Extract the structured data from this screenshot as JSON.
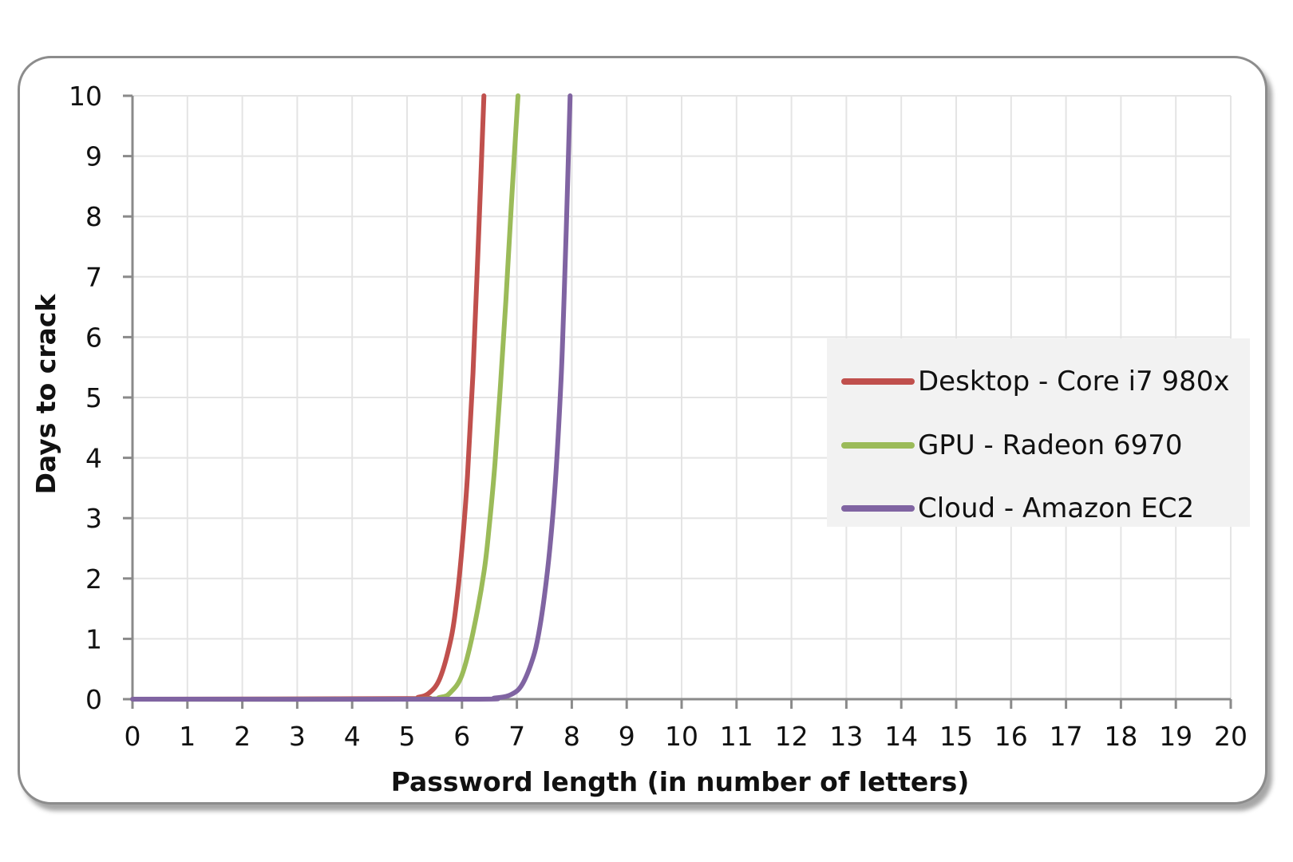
{
  "chart_data": {
    "type": "line",
    "title": "",
    "xlabel": "Password length (in number of letters)",
    "ylabel": "Days to crack",
    "xlim": [
      0,
      20
    ],
    "ylim": [
      0,
      10
    ],
    "x_ticks": [
      0,
      1,
      2,
      3,
      4,
      5,
      6,
      7,
      8,
      9,
      10,
      11,
      12,
      13,
      14,
      15,
      16,
      17,
      18,
      19,
      20
    ],
    "y_ticks": [
      0,
      1,
      2,
      3,
      4,
      5,
      6,
      7,
      8,
      9,
      10
    ],
    "grid": true,
    "legend_position": "right",
    "series": [
      {
        "name": "Desktop - Core i7 980x",
        "color": "#c0504d",
        "points": [
          [
            0,
            0
          ],
          [
            5,
            0.01
          ],
          [
            5.2,
            0.03
          ],
          [
            5.4,
            0.1
          ],
          [
            5.6,
            0.35
          ],
          [
            5.8,
            1.0
          ],
          [
            5.9,
            1.6
          ],
          [
            6.0,
            2.5
          ],
          [
            6.1,
            3.7
          ],
          [
            6.2,
            5.4
          ],
          [
            6.3,
            7.6
          ],
          [
            6.4,
            10
          ]
        ]
      },
      {
        "name": "GPU - Radeon 6970",
        "color": "#9bbb59",
        "points": [
          [
            0,
            0
          ],
          [
            5,
            0
          ],
          [
            5.6,
            0.03
          ],
          [
            5.8,
            0.12
          ],
          [
            6.0,
            0.4
          ],
          [
            6.2,
            1.1
          ],
          [
            6.4,
            2.1
          ],
          [
            6.5,
            2.9
          ],
          [
            6.6,
            3.9
          ],
          [
            6.7,
            5.2
          ],
          [
            6.8,
            6.6
          ],
          [
            6.9,
            8.2
          ],
          [
            7.02,
            10
          ]
        ]
      },
      {
        "name": "Cloud - Amazon EC2",
        "color": "#8064a2",
        "points": [
          [
            0,
            0
          ],
          [
            6,
            0
          ],
          [
            6.6,
            0.02
          ],
          [
            6.9,
            0.08
          ],
          [
            7.1,
            0.25
          ],
          [
            7.3,
            0.7
          ],
          [
            7.4,
            1.1
          ],
          [
            7.5,
            1.7
          ],
          [
            7.6,
            2.5
          ],
          [
            7.7,
            3.6
          ],
          [
            7.8,
            5.2
          ],
          [
            7.85,
            6.4
          ],
          [
            7.9,
            7.8
          ],
          [
            7.97,
            10
          ]
        ]
      }
    ]
  }
}
